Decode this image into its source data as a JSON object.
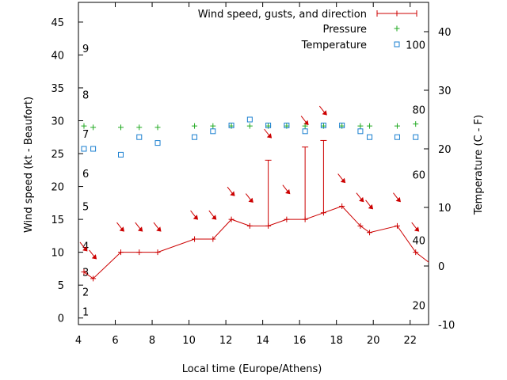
{
  "chart_data": {
    "type": "line",
    "xlabel": "Local time (Europe/Athens)",
    "ylabel": "Wind speed (kt - Beaufort)",
    "y2label": "Temperature (C - F)",
    "xlim": [
      4,
      23
    ],
    "ylim": [
      -1,
      48
    ],
    "y2lim": [
      -10,
      45
    ],
    "x_ticks": [
      4,
      6,
      8,
      10,
      12,
      14,
      16,
      18,
      20,
      22
    ],
    "y_ticks": [
      0,
      5,
      10,
      15,
      20,
      25,
      30,
      35,
      40,
      45
    ],
    "y2_ticks": [
      -10,
      0,
      10,
      20,
      30,
      40
    ],
    "beaufort_labels": [
      {
        "label": "1",
        "y": 1
      },
      {
        "label": "2",
        "y": 4
      },
      {
        "label": "3",
        "y": 7
      },
      {
        "label": "4",
        "y": 11
      },
      {
        "label": "5",
        "y": 17
      },
      {
        "label": "6",
        "y": 22
      },
      {
        "label": "7",
        "y": 28
      },
      {
        "label": "8",
        "y": 34
      },
      {
        "label": "9",
        "y": 41
      }
    ],
    "fahrenheit_labels": [
      {
        "label": "20",
        "y2": -6.7
      },
      {
        "label": "40",
        "y2": 4.4
      },
      {
        "label": "60",
        "y2": 15.6
      },
      {
        "label": "80",
        "y2": 26.7
      },
      {
        "label": "100",
        "y2": 37.8
      }
    ],
    "colors": {
      "wind": "#cc0000",
      "pressure": "#22aa22",
      "temperature": "#1a7fd0"
    },
    "legend": {
      "placement": "top-right",
      "wind": "Wind speed, gusts, and direction",
      "pressure": "Pressure",
      "temperature": "Temperature"
    },
    "wind": {
      "x": [
        4.3,
        4.8,
        6.3,
        7.3,
        8.3,
        10.3,
        11.3,
        12.3,
        13.3,
        14.3,
        15.3,
        16.3,
        17.3,
        18.3,
        19.3,
        19.8,
        21.3,
        22.3,
        23
      ],
      "speed": [
        7,
        6,
        10,
        10,
        10,
        12,
        12,
        15,
        14,
        14,
        15,
        15,
        16,
        17,
        14,
        13,
        14,
        10,
        8.5
      ],
      "gust": [
        null,
        null,
        null,
        null,
        null,
        null,
        null,
        null,
        null,
        24,
        null,
        26,
        27,
        null,
        null,
        null,
        null,
        null,
        null
      ]
    },
    "wind_arrows": [
      {
        "x": 4.3,
        "y": 10.8
      },
      {
        "x": 4.8,
        "y": 9.6
      },
      {
        "x": 6.3,
        "y": 13.8
      },
      {
        "x": 7.3,
        "y": 13.8
      },
      {
        "x": 8.3,
        "y": 13.8
      },
      {
        "x": 10.3,
        "y": 15.6
      },
      {
        "x": 11.3,
        "y": 15.6
      },
      {
        "x": 12.3,
        "y": 19.2
      },
      {
        "x": 13.3,
        "y": 18.2
      },
      {
        "x": 14.3,
        "y": 28
      },
      {
        "x": 15.3,
        "y": 19.5
      },
      {
        "x": 16.3,
        "y": 30
      },
      {
        "x": 17.3,
        "y": 31.5
      },
      {
        "x": 18.3,
        "y": 21.2
      },
      {
        "x": 19.3,
        "y": 18.3
      },
      {
        "x": 19.8,
        "y": 17.2
      },
      {
        "x": 21.3,
        "y": 18.3
      },
      {
        "x": 22.3,
        "y": 13.8
      }
    ],
    "pressure": {
      "x": [
        4.3,
        4.8,
        6.3,
        7.3,
        8.3,
        10.3,
        11.3,
        12.3,
        13.3,
        14.3,
        15.3,
        16.3,
        17.3,
        18.3,
        19.3,
        19.8,
        21.3,
        22.3
      ],
      "y": [
        29.2,
        29,
        29,
        29,
        29,
        29.2,
        29.2,
        29.2,
        29.2,
        29.2,
        29.2,
        29.2,
        29.2,
        29.2,
        29.2,
        29.2,
        29.2,
        29.5
      ]
    },
    "temperature": {
      "x": [
        4.3,
        4.8,
        6.3,
        7.3,
        8.3,
        10.3,
        11.3,
        12.3,
        13.3,
        14.3,
        15.3,
        16.3,
        17.3,
        18.3,
        19.3,
        19.8,
        21.3,
        22.3
      ],
      "y2": [
        20,
        20,
        19,
        22,
        21,
        22,
        23,
        24,
        25,
        24,
        24,
        23,
        24,
        24,
        23,
        22,
        22,
        22
      ]
    }
  }
}
